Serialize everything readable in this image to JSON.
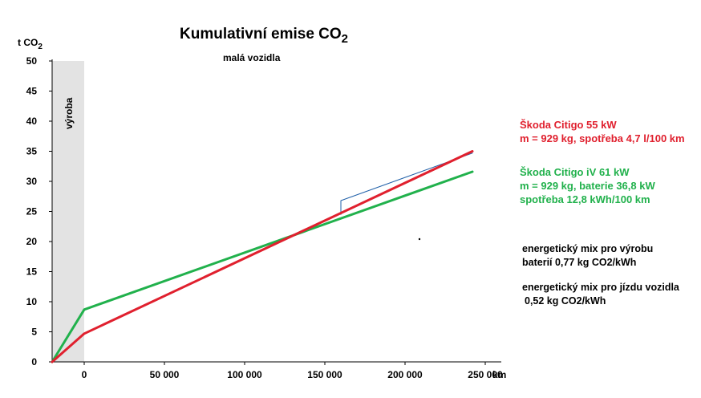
{
  "chart_data": {
    "type": "line",
    "title": "Kumulativní emise CO",
    "title_sub": "2",
    "subtitle": "malá vozidla",
    "ylabel": "t CO",
    "ylabel_sub": "2",
    "xlabel": "km",
    "xlim": [
      -20000,
      260000
    ],
    "ylim": [
      0,
      50
    ],
    "x_ticks": [
      0,
      50000,
      100000,
      150000,
      200000,
      250000
    ],
    "x_tick_labels": [
      "0",
      "50 000",
      "100 000",
      "150 000",
      "200 000",
      "250 000"
    ],
    "y_ticks": [
      0,
      5,
      10,
      15,
      20,
      25,
      30,
      35,
      40,
      45,
      50
    ],
    "y_tick_labels": [
      "0",
      "5",
      "10",
      "15",
      "20",
      "25",
      "30",
      "35",
      "40",
      "45",
      "50"
    ],
    "production_band": {
      "label": "výroba",
      "x_range": [
        -20000,
        0
      ]
    },
    "series": [
      {
        "name": "Škoda Citigo  55 kW",
        "color": "#e0202e",
        "x": [
          -20000,
          0,
          242000
        ],
        "y": [
          0,
          4.7,
          35.0
        ]
      },
      {
        "name": "Škoda Citigo iV  61 kW",
        "color": "#21b14c",
        "x": [
          -20000,
          0,
          242000
        ],
        "y": [
          0,
          8.7,
          31.6
        ]
      },
      {
        "name": "",
        "color": "#1f5fa8",
        "x": [
          160000,
          160000,
          242000
        ],
        "y": [
          24.5,
          26.8,
          34.7
        ]
      }
    ]
  },
  "legend": {
    "petrol_line1": "Škoda Citigo  55 kW",
    "petrol_line2": "m = 929 kg, spotřeba 4,7 l/100 km",
    "ev_line1": "Škoda Citigo iV  61 kW",
    "ev_line2": "m = 929 kg, baterie 36,8 kW",
    "ev_line3": "spotřeba 12,8 kWh/100 km"
  },
  "notes": {
    "mix_battery_line1": "energetický mix pro výrobu",
    "mix_battery_line2": "baterií 0,77 kg CO2/kWh",
    "mix_drive_line1": "energetický mix pro jízdu vozidla",
    "mix_drive_line2": "0,52 kg CO2/kWh"
  },
  "colors": {
    "petrol": "#e0202e",
    "ev": "#21b14c",
    "band": "#e3e3e3"
  }
}
